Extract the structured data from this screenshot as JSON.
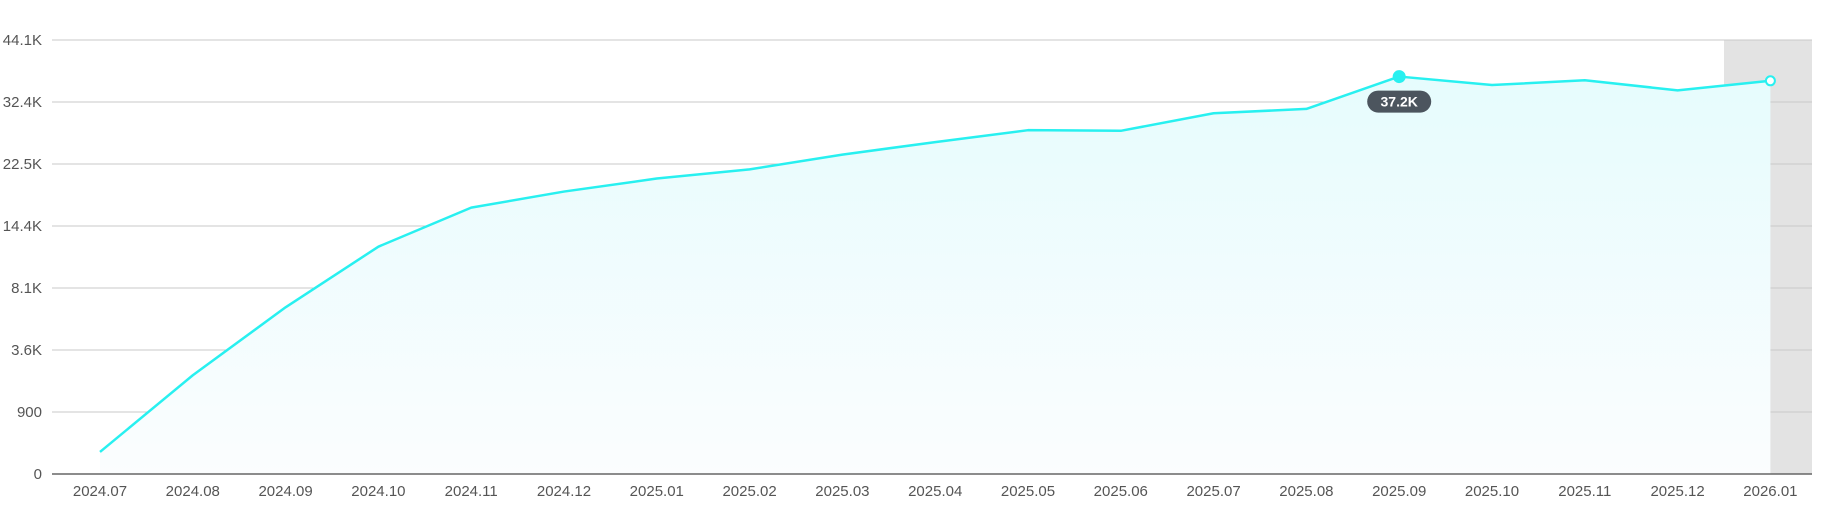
{
  "chart_data": {
    "type": "area",
    "title": "",
    "xlabel": "",
    "ylabel": "",
    "colors": {
      "line": "#28f0f0",
      "area_top": "#e6fcfd",
      "area_bottom": "#fbfdfe",
      "grid": "#c9c9c9",
      "axis": "#666666",
      "highlight_band": "#e3e3e3",
      "tooltip_bg": "#4c555e",
      "tooltip_text": "#ffffff"
    },
    "y_ticks": [
      "0",
      "900",
      "3.6K",
      "8.1K",
      "14.4K",
      "22.5K",
      "32.4K",
      "44.1K"
    ],
    "x": [
      "2024.07",
      "2024.08",
      "2024.09",
      "2024.10",
      "2024.11",
      "2024.12",
      "2025.01",
      "2025.02",
      "2025.03",
      "2025.04",
      "2025.05",
      "2025.06",
      "2025.07",
      "2025.08",
      "2025.09",
      "2025.10",
      "2025.11",
      "2025.12",
      "2026.01"
    ],
    "values": [
      320,
      2500,
      6700,
      12300,
      16800,
      18900,
      20600,
      21800,
      24000,
      26000,
      27900,
      27800,
      30600,
      31300,
      37200,
      35600,
      36500,
      34600,
      36400
    ],
    "highlight": {
      "index": 14,
      "label": "37.2K"
    },
    "open_marker_index": 18,
    "shaded_region_start": "2025.12"
  }
}
